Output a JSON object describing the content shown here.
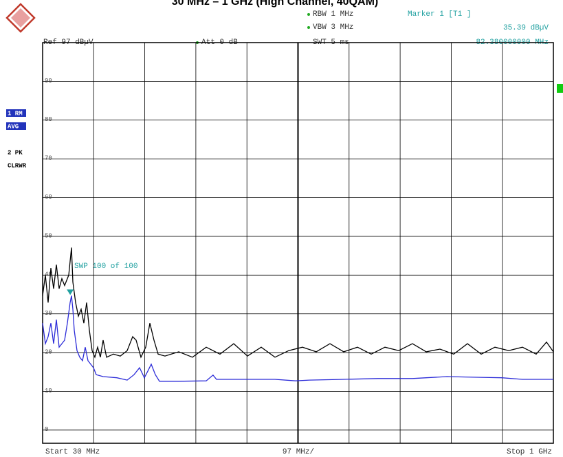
{
  "chart_data": {
    "type": "line",
    "title": "30 MHz – 1 GHz (High Channel, 40QAM)",
    "header": {
      "ref": "Ref 97 dBµV",
      "att": "Att 0 dB",
      "rbw": "RBW 1 MHz",
      "vbw": "VBW 3 MHz",
      "swt": "SWT 5 ms"
    },
    "marker": {
      "name": "Marker 1 [T1 ]",
      "x": 82.38,
      "y": 35.39,
      "y_label": "35.39 dBµV",
      "x_label": "82.380000000 MHz",
      "color": "#20a0a0"
    },
    "sweep_label": "SWP 100 of 100",
    "x_start_label": "Start 30 MHz",
    "x_div_label": "97 MHz/",
    "x_stop_label": "Stop 1 GHz",
    "xlim": [
      30,
      1000
    ],
    "ylim": [
      -3.4,
      100
    ],
    "yticks": [
      0,
      10,
      20,
      30,
      40,
      50,
      60,
      70,
      80,
      90
    ],
    "grid": true,
    "series": [
      {
        "name": "2 PK",
        "mode": "CLRWR",
        "color": "#000000",
        "x": [
          30,
          35.2,
          40.4,
          45.7,
          50.9,
          56.1,
          61.3,
          66.6,
          71.8,
          79.6,
          84.8,
          87.4,
          92.7,
          97.9,
          103.1,
          108.3,
          113.6,
          118.8,
          124,
          129.2,
          134.4,
          139.7,
          144.9,
          151.4,
          164.5,
          177.5,
          190.6,
          201,
          207.5,
          216.7,
          225.8,
          233.7,
          241.5,
          249.3,
          262.4,
          288.5,
          314.6,
          340.7,
          366.8,
          392.9,
          419,
          445.2,
          471.3,
          497.4,
          523.5,
          549.6,
          575.7,
          601.8,
          627.9,
          654,
          680.1,
          706.2,
          732.4,
          758.5,
          784.6,
          810.7,
          836.8,
          862.9,
          889,
          915.1,
          941.2,
          967.3,
          986.9,
          1000
        ],
        "values": [
          34.7,
          40,
          32.9,
          41.8,
          36.5,
          42.7,
          36.5,
          39.1,
          37.3,
          40,
          47.1,
          38.2,
          32.9,
          29.4,
          31.2,
          27.6,
          32.9,
          25.8,
          20.5,
          18.8,
          21.4,
          18.8,
          23.2,
          18.8,
          19.6,
          19.1,
          20.5,
          24.1,
          23.2,
          18.8,
          21.4,
          27.6,
          23.2,
          19.6,
          19.1,
          20.2,
          18.8,
          21.4,
          19.6,
          22.3,
          19.1,
          21.4,
          18.8,
          20.5,
          21.4,
          20.2,
          22.3,
          20.2,
          21.4,
          19.6,
          21.4,
          20.5,
          22.3,
          20.2,
          20.9,
          19.6,
          22.3,
          19.6,
          21.4,
          20.5,
          21.4,
          19.6,
          22.7,
          20.2
        ]
      },
      {
        "name": "1 RM",
        "mode": "AVG",
        "color": "#2b2bd8",
        "x": [
          30,
          35.2,
          40.4,
          45.7,
          50.9,
          56.1,
          61.3,
          66.6,
          71.8,
          77,
          82.2,
          84.8,
          87.4,
          90.1,
          95.3,
          100.5,
          105.7,
          110.9,
          116.2,
          121.4,
          126.6,
          131.8,
          144.9,
          171,
          190.6,
          203.6,
          214.1,
          223.2,
          229.7,
          236.3,
          244.1,
          251.9,
          288.5,
          340.7,
          353.7,
          360.2,
          392.9,
          471.3,
          510.4,
          536.5,
          601.8,
          667.1,
          732.4,
          758.5,
          797.6,
          862.9,
          902.1,
          941.2,
          980.4,
          1000
        ],
        "values": [
          27.6,
          22.3,
          24.1,
          27.6,
          22.3,
          28.5,
          21.4,
          22.3,
          23.2,
          27.6,
          32.9,
          34.7,
          31.2,
          25.8,
          20.5,
          18.8,
          17.9,
          21.4,
          17.9,
          17,
          16.1,
          14.3,
          13.8,
          13.5,
          12.9,
          14.3,
          16.1,
          13.5,
          15.2,
          17,
          14.3,
          12.6,
          12.6,
          12.7,
          14.2,
          13.1,
          13.1,
          13.1,
          12.7,
          12.9,
          13.1,
          13.3,
          13.3,
          13.5,
          13.8,
          13.6,
          13.5,
          13.1,
          13.1,
          13.1
        ]
      }
    ]
  }
}
